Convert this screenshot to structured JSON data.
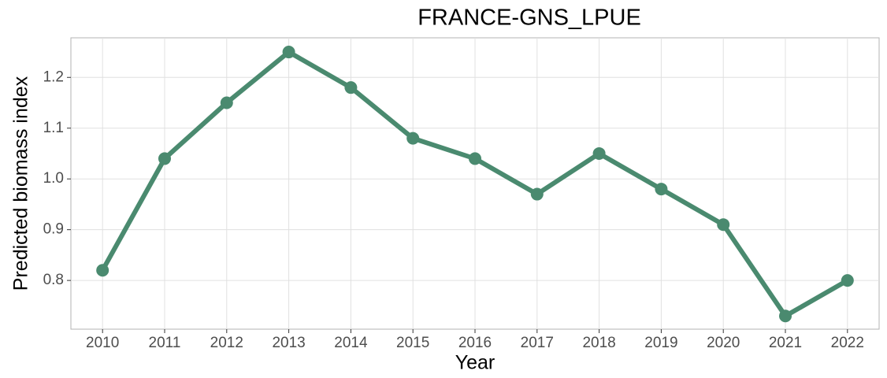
{
  "chart_data": {
    "type": "line",
    "title": "FRANCE-GNS_LPUE",
    "x_label": "Year",
    "y_label": "Predicted biomass index",
    "x": [
      2010,
      2011,
      2012,
      2013,
      2014,
      2015,
      2016,
      2017,
      2018,
      2019,
      2020,
      2021,
      2022
    ],
    "series": [
      {
        "color": "#4a8a6f",
        "values": [
          0.82,
          1.04,
          1.15,
          1.25,
          1.18,
          1.08,
          1.04,
          0.97,
          1.05,
          0.98,
          0.91,
          0.73,
          0.8
        ]
      }
    ],
    "xlim": [
      2009.49,
      2022.51
    ],
    "ylim": [
      0.704,
      1.278
    ],
    "xticks": [
      2010,
      2011,
      2012,
      2013,
      2014,
      2015,
      2016,
      2017,
      2018,
      2019,
      2020,
      2021,
      2022
    ],
    "yticks": [
      0.8,
      0.9,
      {
        "value": 1.0,
        "label": "1.0"
      },
      1.1,
      1.2
    ],
    "grid": true
  }
}
